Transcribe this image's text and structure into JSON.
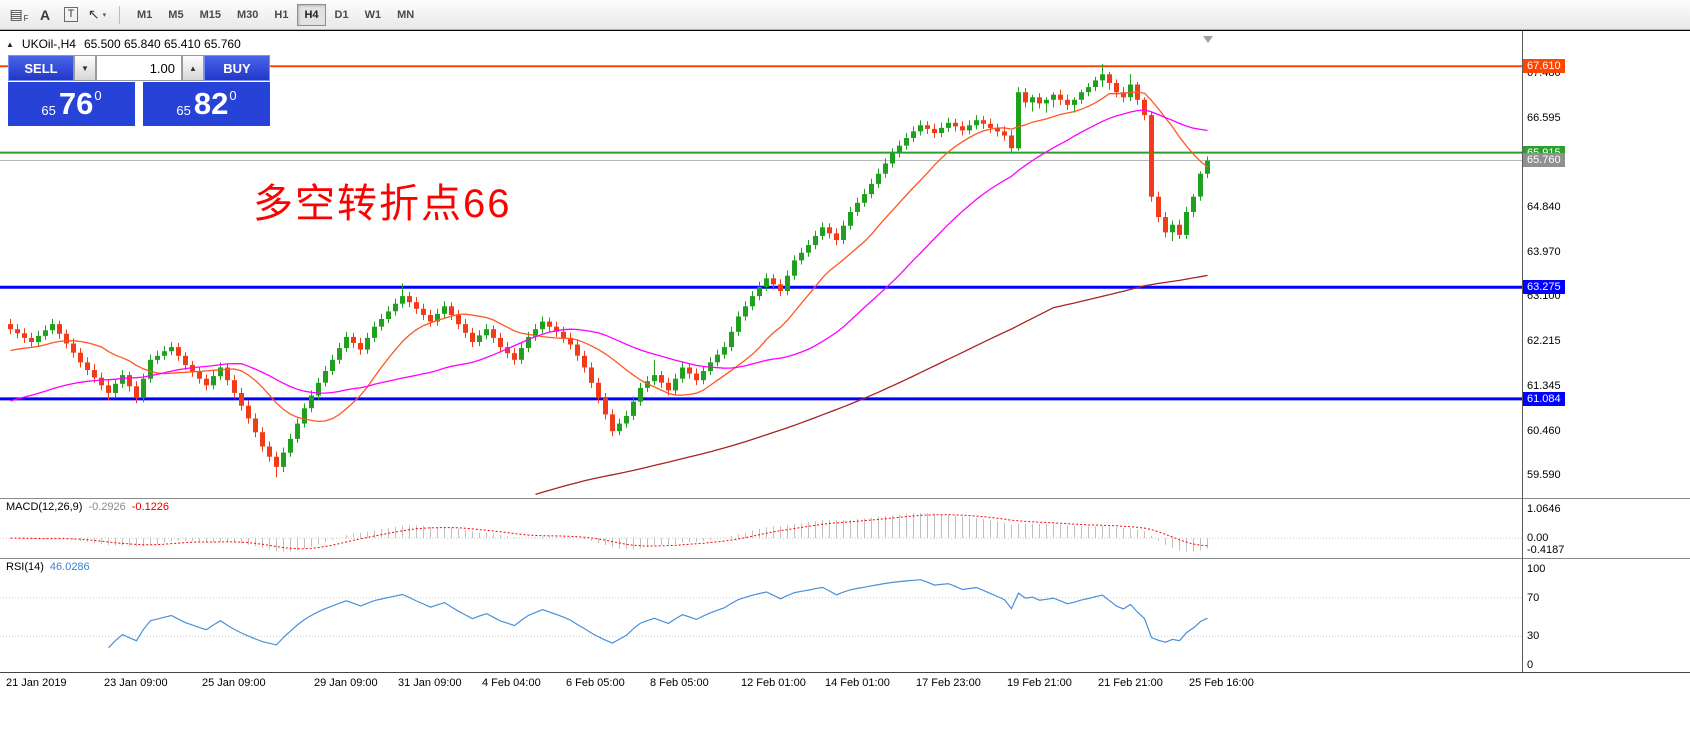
{
  "toolbar": {
    "tools": [
      {
        "name": "chart-properties",
        "glyph": "▤",
        "sub": "F"
      },
      {
        "name": "text-annotation",
        "glyph": "A"
      },
      {
        "name": "text-label",
        "glyph": "T",
        "boxed": true
      },
      {
        "name": "crosshair-tool",
        "glyph": "↖",
        "dropdown": "▾"
      }
    ],
    "timeframes": [
      "M1",
      "M5",
      "M15",
      "M30",
      "H1",
      "H4",
      "D1",
      "W1",
      "MN"
    ],
    "active_timeframe": "H4"
  },
  "chart": {
    "title_symbol": "UKOil-,H4",
    "title_ohlc": "65.500 65.840 65.410 65.760",
    "annotation": "多空转折点66",
    "collapse_icon": "▲"
  },
  "trade_panel": {
    "sell_label": "SELL",
    "buy_label": "BUY",
    "volume": "1.00",
    "decrease_icon": "▼",
    "increase_icon": "▲",
    "sell_price": {
      "small": "65",
      "big": "76",
      "sup": "0"
    },
    "buy_price": {
      "small": "65",
      "big": "82",
      "sup": "0"
    }
  },
  "chart_data": {
    "type": "candlestick",
    "symbol": "UKOil-",
    "timeframe": "H4",
    "colors": {
      "up": "#1fa11f",
      "down": "#f23c19",
      "background": "#ffffff"
    },
    "y_axis_labels": [
      {
        "text": "67.480",
        "price": 67.48
      },
      {
        "text": "66.595",
        "price": 66.595
      },
      {
        "text": "64.840",
        "price": 64.84
      },
      {
        "text": "63.970",
        "price": 63.97
      },
      {
        "text": "63.100",
        "price": 63.1
      },
      {
        "text": "62.215",
        "price": 62.215
      },
      {
        "text": "61.345",
        "price": 61.345
      },
      {
        "text": "60.460",
        "price": 60.46
      },
      {
        "text": "59.590",
        "price": 59.59
      }
    ],
    "price_lines": [
      {
        "label": "67.610",
        "price": 67.61,
        "color": "#ff4500",
        "width": 2
      },
      {
        "label": "65.915",
        "price": 65.915,
        "color": "#2e9e2e",
        "width": 2
      },
      {
        "label": "65.760",
        "price": 65.76,
        "color": "#b8b8b8",
        "width": 1,
        "badge": "#909090"
      },
      {
        "label": "63.275",
        "price": 63.275,
        "color": "#0000ff",
        "width": 3
      },
      {
        "label": "61.084",
        "price": 61.084,
        "color": "#0000ff",
        "width": 3
      }
    ],
    "moving_averages": [
      {
        "name": "ma-fast",
        "period": 14,
        "color": "#ff5722",
        "prehistory": 62.0
      },
      {
        "name": "ma-medium",
        "period": 34,
        "color": "#ff00ff",
        "prehistory": 61.0
      },
      {
        "name": "ma-slow",
        "period": 150,
        "color": "#aa2222",
        "prehistory": 56.5
      }
    ],
    "x_labels": [
      {
        "text": "21 Jan 2019",
        "i": 0
      },
      {
        "text": "23 Jan 09:00",
        "i": 14
      },
      {
        "text": "25 Jan 09:00",
        "i": 28
      },
      {
        "text": "29 Jan 09:00",
        "i": 44
      },
      {
        "text": "31 Jan 09:00",
        "i": 56
      },
      {
        "text": "4 Feb 04:00",
        "i": 68
      },
      {
        "text": "6 Feb 05:00",
        "i": 80
      },
      {
        "text": "8 Feb 05:00",
        "i": 92
      },
      {
        "text": "12 Feb 01:00",
        "i": 105
      },
      {
        "text": "14 Feb 01:00",
        "i": 117
      },
      {
        "text": "17 Feb 23:00",
        "i": 130
      },
      {
        "text": "19 Feb 21:00",
        "i": 143
      },
      {
        "text": "21 Feb 21:00",
        "i": 156
      },
      {
        "text": "25 Feb 16:00",
        "i": 169
      }
    ],
    "indicators": {
      "macd": {
        "label": "MACD(12,26,9)",
        "value": "-0.2926",
        "signal_value": "-0.1226",
        "fast": 12,
        "slow": 26,
        "signal": 9,
        "histogram_color": "#c0c0c0",
        "signal_color": "#ff0000",
        "levels": [
          {
            "text": "1.0646",
            "v": 1.0646
          },
          {
            "text": "0.00",
            "v": 0
          },
          {
            "text": "-0.4187",
            "v": -0.4187
          }
        ]
      },
      "rsi": {
        "label": "RSI(14)",
        "value": "46.0286",
        "period": 14,
        "color": "#4a90d9",
        "levels": [
          {
            "text": "100",
            "v": 100
          },
          {
            "text": "70",
            "v": 70
          },
          {
            "text": "30",
            "v": 30
          },
          {
            "text": "0",
            "v": 0
          }
        ],
        "guides": [
          70,
          30
        ]
      }
    },
    "candles": [
      [
        62.55,
        62.65,
        62.35,
        62.45
      ],
      [
        62.45,
        62.55,
        62.27,
        62.37
      ],
      [
        62.37,
        62.47,
        62.18,
        62.28
      ],
      [
        62.28,
        62.38,
        62.1,
        62.2
      ],
      [
        62.2,
        62.42,
        62.12,
        62.32
      ],
      [
        62.32,
        62.53,
        62.24,
        62.43
      ],
      [
        62.43,
        62.65,
        62.35,
        62.55
      ],
      [
        62.55,
        62.62,
        62.26,
        62.36
      ],
      [
        62.36,
        62.45,
        62.07,
        62.17
      ],
      [
        62.17,
        62.27,
        61.89,
        61.99
      ],
      [
        61.99,
        62.08,
        61.7,
        61.8
      ],
      [
        61.8,
        61.9,
        61.55,
        61.65
      ],
      [
        61.65,
        61.77,
        61.4,
        61.5
      ],
      [
        61.5,
        61.6,
        61.25,
        61.35
      ],
      [
        61.35,
        61.45,
        61.05,
        61.2
      ],
      [
        61.2,
        61.48,
        61.12,
        61.38
      ],
      [
        61.38,
        61.65,
        61.3,
        61.55
      ],
      [
        61.55,
        61.62,
        61.23,
        61.33
      ],
      [
        61.33,
        61.43,
        61.0,
        61.1
      ],
      [
        61.1,
        61.58,
        61.02,
        61.48
      ],
      [
        61.48,
        61.95,
        61.4,
        61.85
      ],
      [
        61.85,
        62.03,
        61.77,
        61.93
      ],
      [
        61.93,
        62.12,
        61.85,
        62.02
      ],
      [
        62.02,
        62.2,
        61.94,
        62.1
      ],
      [
        62.1,
        62.18,
        61.83,
        61.93
      ],
      [
        61.93,
        62.0,
        61.65,
        61.75
      ],
      [
        61.75,
        61.83,
        61.52,
        61.62
      ],
      [
        61.62,
        61.72,
        61.38,
        61.48
      ],
      [
        61.48,
        61.56,
        61.25,
        61.35
      ],
      [
        61.35,
        61.63,
        61.27,
        61.53
      ],
      [
        61.53,
        61.8,
        61.45,
        61.7
      ],
      [
        61.7,
        61.78,
        61.35,
        61.45
      ],
      [
        61.45,
        61.55,
        61.1,
        61.2
      ],
      [
        61.2,
        61.3,
        60.85,
        60.95
      ],
      [
        60.95,
        61.05,
        60.6,
        60.7
      ],
      [
        60.7,
        60.8,
        60.33,
        60.43
      ],
      [
        60.43,
        60.53,
        60.05,
        60.15
      ],
      [
        60.15,
        60.25,
        59.85,
        59.95
      ],
      [
        59.95,
        60.05,
        59.55,
        59.75
      ],
      [
        59.75,
        60.13,
        59.65,
        60.03
      ],
      [
        60.03,
        60.4,
        59.95,
        60.3
      ],
      [
        60.3,
        60.7,
        60.22,
        60.6
      ],
      [
        60.6,
        61.0,
        60.52,
        60.9
      ],
      [
        60.9,
        61.25,
        60.82,
        61.15
      ],
      [
        61.15,
        61.5,
        61.07,
        61.4
      ],
      [
        61.4,
        61.73,
        61.32,
        61.63
      ],
      [
        61.63,
        61.95,
        61.55,
        61.85
      ],
      [
        61.85,
        62.18,
        61.77,
        62.08
      ],
      [
        62.08,
        62.4,
        62.0,
        62.3
      ],
      [
        62.3,
        62.38,
        62.08,
        62.18
      ],
      [
        62.18,
        62.28,
        61.95,
        62.05
      ],
      [
        62.05,
        62.38,
        61.97,
        62.28
      ],
      [
        62.28,
        62.6,
        62.2,
        62.5
      ],
      [
        62.5,
        62.75,
        62.42,
        62.65
      ],
      [
        62.65,
        62.9,
        62.57,
        62.8
      ],
      [
        62.8,
        63.05,
        62.72,
        62.95
      ],
      [
        62.95,
        63.35,
        62.87,
        63.1
      ],
      [
        63.1,
        63.18,
        62.88,
        62.98
      ],
      [
        62.98,
        63.08,
        62.75,
        62.85
      ],
      [
        62.85,
        62.95,
        62.63,
        62.73
      ],
      [
        62.73,
        62.83,
        62.5,
        62.6
      ],
      [
        62.6,
        62.85,
        62.52,
        62.75
      ],
      [
        62.75,
        63.0,
        62.67,
        62.9
      ],
      [
        62.9,
        62.98,
        62.63,
        62.73
      ],
      [
        62.73,
        62.83,
        62.45,
        62.55
      ],
      [
        62.55,
        62.65,
        62.28,
        62.38
      ],
      [
        62.38,
        62.48,
        62.1,
        62.2
      ],
      [
        62.2,
        62.43,
        62.12,
        62.33
      ],
      [
        62.33,
        62.55,
        62.25,
        62.45
      ],
      [
        62.45,
        62.53,
        62.18,
        62.28
      ],
      [
        62.28,
        62.38,
        62.0,
        62.1
      ],
      [
        62.1,
        62.2,
        61.88,
        61.98
      ],
      [
        61.98,
        62.08,
        61.75,
        61.85
      ],
      [
        61.85,
        62.18,
        61.77,
        62.08
      ],
      [
        62.08,
        62.4,
        62.0,
        62.3
      ],
      [
        62.3,
        62.55,
        62.22,
        62.45
      ],
      [
        62.45,
        62.7,
        62.37,
        62.6
      ],
      [
        62.6,
        62.68,
        62.4,
        62.5
      ],
      [
        62.5,
        62.6,
        62.3,
        62.4
      ],
      [
        62.4,
        62.5,
        62.18,
        62.28
      ],
      [
        62.28,
        62.38,
        62.05,
        62.15
      ],
      [
        62.15,
        62.25,
        61.83,
        61.93
      ],
      [
        61.93,
        62.03,
        61.6,
        61.7
      ],
      [
        61.7,
        61.8,
        61.3,
        61.4
      ],
      [
        61.4,
        61.5,
        61.0,
        61.1
      ],
      [
        61.1,
        61.2,
        60.68,
        60.78
      ],
      [
        60.78,
        60.88,
        60.35,
        60.45
      ],
      [
        60.45,
        60.7,
        60.37,
        60.6
      ],
      [
        60.6,
        60.85,
        60.52,
        60.75
      ],
      [
        60.75,
        61.13,
        60.67,
        61.03
      ],
      [
        61.03,
        61.4,
        60.95,
        61.3
      ],
      [
        61.3,
        61.53,
        61.22,
        61.43
      ],
      [
        61.43,
        61.85,
        61.35,
        61.55
      ],
      [
        61.55,
        61.63,
        61.3,
        61.4
      ],
      [
        61.4,
        61.5,
        61.15,
        61.25
      ],
      [
        61.25,
        61.58,
        61.17,
        61.48
      ],
      [
        61.48,
        61.8,
        61.4,
        61.7
      ],
      [
        61.7,
        61.78,
        61.48,
        61.58
      ],
      [
        61.58,
        61.68,
        61.35,
        61.45
      ],
      [
        61.45,
        61.73,
        61.37,
        61.63
      ],
      [
        61.63,
        61.9,
        61.55,
        61.8
      ],
      [
        61.8,
        62.05,
        61.72,
        61.95
      ],
      [
        61.95,
        62.2,
        61.87,
        62.1
      ],
      [
        62.1,
        62.5,
        62.02,
        62.4
      ],
      [
        62.4,
        62.8,
        62.32,
        62.7
      ],
      [
        62.7,
        63.0,
        62.62,
        62.9
      ],
      [
        62.9,
        63.2,
        62.82,
        63.1
      ],
      [
        63.1,
        63.38,
        63.02,
        63.28
      ],
      [
        63.28,
        63.55,
        63.2,
        63.45
      ],
      [
        63.45,
        63.53,
        63.23,
        63.33
      ],
      [
        63.33,
        63.43,
        63.1,
        63.2
      ],
      [
        63.2,
        63.6,
        63.12,
        63.5
      ],
      [
        63.5,
        63.9,
        63.42,
        63.8
      ],
      [
        63.8,
        64.05,
        63.72,
        63.95
      ],
      [
        63.95,
        64.2,
        63.87,
        64.1
      ],
      [
        64.1,
        64.38,
        64.02,
        64.28
      ],
      [
        64.28,
        64.55,
        64.2,
        64.45
      ],
      [
        64.45,
        64.53,
        64.23,
        64.33
      ],
      [
        64.33,
        64.43,
        64.1,
        64.2
      ],
      [
        64.2,
        64.58,
        64.12,
        64.48
      ],
      [
        64.48,
        64.85,
        64.4,
        64.75
      ],
      [
        64.75,
        65.03,
        64.67,
        64.93
      ],
      [
        64.93,
        65.2,
        64.85,
        65.1
      ],
      [
        65.1,
        65.4,
        65.02,
        65.3
      ],
      [
        65.3,
        65.6,
        65.22,
        65.5
      ],
      [
        65.5,
        65.8,
        65.42,
        65.7
      ],
      [
        65.7,
        66.0,
        65.62,
        65.9
      ],
      [
        65.9,
        66.15,
        65.82,
        66.05
      ],
      [
        66.05,
        66.3,
        65.97,
        66.2
      ],
      [
        66.2,
        66.43,
        66.12,
        66.33
      ],
      [
        66.33,
        66.55,
        66.25,
        66.45
      ],
      [
        66.45,
        66.53,
        66.28,
        66.38
      ],
      [
        66.38,
        66.48,
        66.2,
        66.3
      ],
      [
        66.3,
        66.5,
        66.22,
        66.4
      ],
      [
        66.4,
        66.6,
        66.32,
        66.5
      ],
      [
        66.5,
        66.58,
        66.33,
        66.43
      ],
      [
        66.43,
        66.53,
        66.25,
        66.35
      ],
      [
        66.35,
        66.55,
        66.27,
        66.45
      ],
      [
        66.45,
        66.65,
        66.37,
        66.55
      ],
      [
        66.55,
        66.63,
        66.38,
        66.48
      ],
      [
        66.48,
        66.58,
        66.3,
        66.4
      ],
      [
        66.4,
        66.48,
        66.23,
        66.33
      ],
      [
        66.33,
        66.43,
        66.15,
        66.25
      ],
      [
        66.25,
        66.35,
        65.9,
        66.0
      ],
      [
        66.0,
        67.2,
        65.95,
        67.1
      ],
      [
        67.1,
        67.18,
        66.8,
        66.9
      ],
      [
        66.9,
        67.05,
        66.72,
        67.0
      ],
      [
        67.0,
        67.08,
        66.78,
        66.88
      ],
      [
        66.88,
        67.0,
        66.7,
        66.95
      ],
      [
        66.95,
        67.1,
        66.8,
        67.05
      ],
      [
        67.05,
        67.15,
        66.85,
        66.95
      ],
      [
        66.95,
        67.05,
        66.75,
        66.85
      ],
      [
        66.85,
        67.0,
        66.7,
        66.95
      ],
      [
        66.95,
        67.15,
        66.87,
        67.1
      ],
      [
        67.1,
        67.28,
        67.02,
        67.2
      ],
      [
        67.2,
        67.4,
        67.12,
        67.33
      ],
      [
        67.33,
        67.65,
        67.2,
        67.45
      ],
      [
        67.45,
        67.5,
        67.15,
        67.28
      ],
      [
        67.28,
        67.35,
        67.0,
        67.1
      ],
      [
        67.1,
        67.2,
        66.9,
        67.0
      ],
      [
        67.0,
        67.45,
        66.92,
        67.25
      ],
      [
        67.25,
        67.3,
        66.85,
        66.95
      ],
      [
        66.95,
        67.0,
        66.55,
        66.65
      ],
      [
        66.65,
        66.7,
        64.95,
        65.05
      ],
      [
        65.05,
        65.15,
        64.55,
        64.65
      ],
      [
        64.65,
        64.75,
        64.25,
        64.35
      ],
      [
        64.35,
        64.58,
        64.18,
        64.5
      ],
      [
        64.5,
        64.6,
        64.22,
        64.3
      ],
      [
        64.3,
        64.85,
        64.22,
        64.75
      ],
      [
        64.75,
        65.1,
        64.65,
        65.05
      ],
      [
        65.05,
        65.55,
        64.97,
        65.5
      ],
      [
        65.5,
        65.84,
        65.41,
        65.76
      ]
    ]
  }
}
